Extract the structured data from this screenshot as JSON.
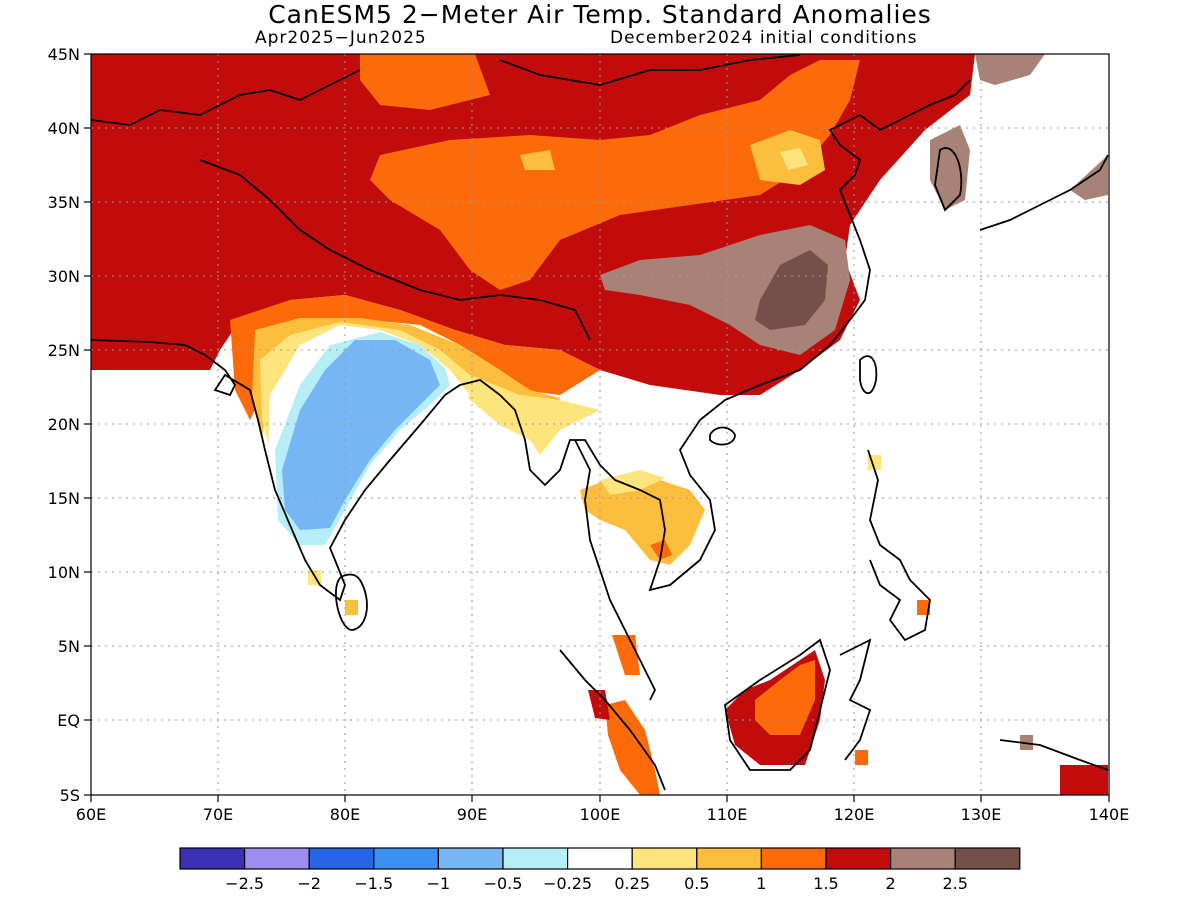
{
  "title": "CanESM5 2−Meter Air Temp. Standard Anomalies",
  "subtitle_left": "Apr2025−Jun2025",
  "subtitle_right": "December2024 initial conditions",
  "map": {
    "lon_range": [
      60,
      140
    ],
    "lat_range": [
      -5,
      45
    ],
    "lon_labels": [
      "60E",
      "70E",
      "80E",
      "90E",
      "100E",
      "110E",
      "120E",
      "130E",
      "140E"
    ],
    "lat_labels": [
      "45N",
      "40N",
      "35N",
      "30N",
      "25N",
      "20N",
      "15N",
      "10N",
      "5N",
      "EQ",
      "5S"
    ],
    "grid": "dotted"
  },
  "colorbar": {
    "colors": [
      "#3b2fb5",
      "#9b8ef0",
      "#2565e6",
      "#3c91f0",
      "#77b6f5",
      "#b6eef8",
      "#ffffff",
      "#fee47c",
      "#fdbe3e",
      "#fc6a0a",
      "#c20c0c",
      "#a88276",
      "#73514a"
    ],
    "labels": [
      "−2.5",
      "−2",
      "−1.5",
      "−1",
      "−0.5",
      "−0.25",
      "0.25",
      "0.5",
      "1",
      "1.5",
      "2",
      "2.5"
    ]
  }
}
